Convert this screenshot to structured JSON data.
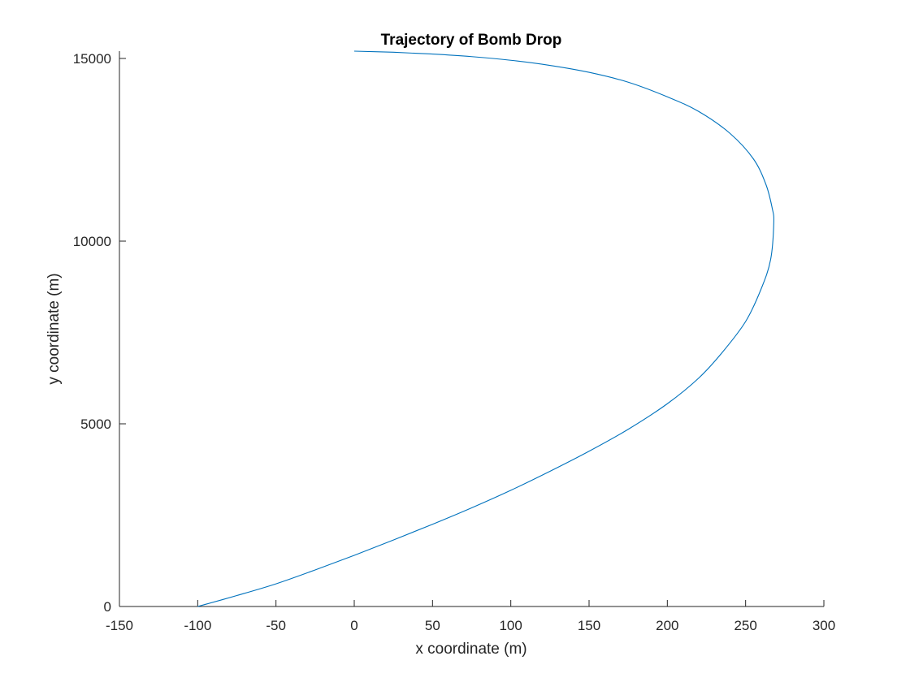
{
  "chart_data": {
    "type": "line",
    "title": "Trajectory of Bomb Drop",
    "xlabel": "x coordinate (m)",
    "ylabel": "y coordinate (m)",
    "xlim": [
      -150,
      300
    ],
    "ylim": [
      0,
      15200
    ],
    "xticks": [
      -150,
      -100,
      -50,
      0,
      50,
      100,
      150,
      200,
      250,
      300
    ],
    "xtick_labels": [
      "-150",
      "-100",
      "-50",
      "0",
      "50",
      "100",
      "150",
      "200",
      "250",
      "300"
    ],
    "yticks": [
      0,
      5000,
      10000,
      15000
    ],
    "ytick_labels": [
      "0",
      "5000",
      "10000",
      "15000"
    ],
    "grid": false,
    "series": [
      {
        "color": "#0072BD",
        "x": [
          0,
          25,
          50,
          75,
          100,
          125,
          150,
          175,
          200,
          220,
          240,
          255,
          263,
          267,
          268,
          266,
          260,
          250,
          235,
          220,
          200,
          175,
          150,
          125,
          100,
          75,
          50,
          25,
          0,
          -25,
          -50,
          -75,
          -100
        ],
        "y": [
          15200,
          15170,
          15120,
          15050,
          14950,
          14810,
          14620,
          14350,
          13950,
          13550,
          12950,
          12250,
          11550,
          10900,
          10500,
          9500,
          8700,
          7800,
          6950,
          6250,
          5550,
          4850,
          4250,
          3700,
          3180,
          2700,
          2250,
          1820,
          1400,
          1000,
          620,
          300,
          0
        ]
      }
    ]
  }
}
